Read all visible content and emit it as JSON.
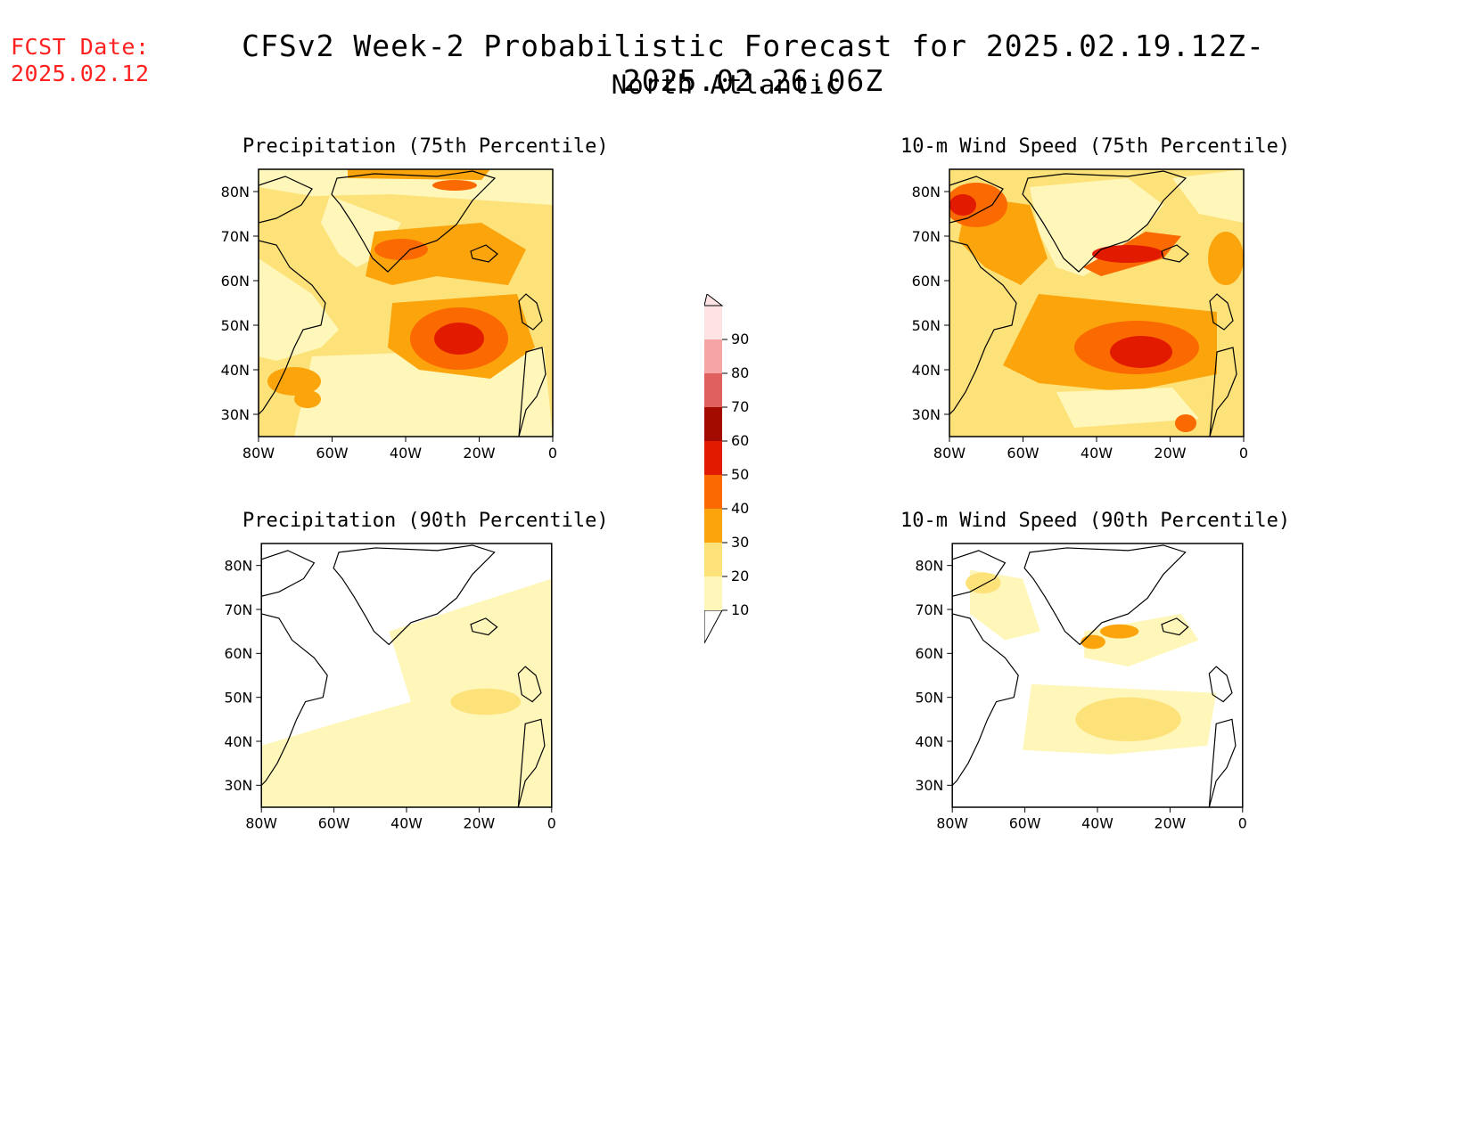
{
  "header": {
    "fcst_label": "FCST Date:",
    "fcst_date": "2025.02.12",
    "title": "CFSv2 Week-2 Probabilistic Forecast for 2025.02.19.12Z-2025.02.26.06Z",
    "subtitle": "North Atlantic"
  },
  "axes": {
    "lat_ticks": [
      "80N",
      "70N",
      "60N",
      "50N",
      "40N",
      "30N"
    ],
    "lon_ticks": [
      "80W",
      "60W",
      "40W",
      "20W",
      "0"
    ]
  },
  "panels": [
    {
      "id": "precip75",
      "title": "Precipitation (75th Percentile)"
    },
    {
      "id": "wind75",
      "title": "10-m Wind Speed (75th Percentile)"
    },
    {
      "id": "precip90",
      "title": "Precipitation (90th Percentile)"
    },
    {
      "id": "wind90",
      "title": "10-m Wind Speed (90th Percentile)"
    }
  ],
  "colorbar": {
    "levels": [
      "10",
      "20",
      "30",
      "40",
      "50",
      "60",
      "70",
      "80",
      "90"
    ],
    "colors": [
      "#fff7ba",
      "#fde27a",
      "#fca40c",
      "#fb6a00",
      "#e11a00",
      "#a30a00",
      "#e06060",
      "#f6a5a5",
      "#fde3e3"
    ]
  }
}
